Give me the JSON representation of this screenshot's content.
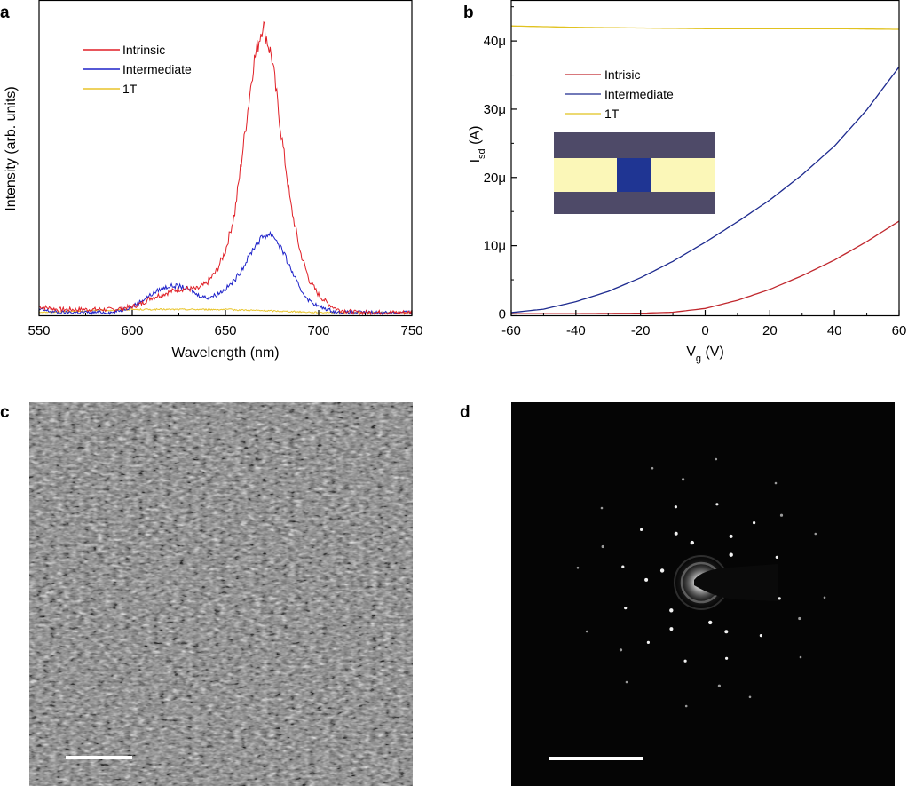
{
  "panels": {
    "a": "a",
    "b": "b",
    "c": "c",
    "d": "d"
  },
  "colors": {
    "red": "#e01f26",
    "blue": "#1e22c9",
    "yellow": "#e8c42a",
    "b_red": "#c0272d",
    "b_blue": "#1d2a8f",
    "b_yellow": "#e1c21f",
    "inset_dark": "#4e4a68",
    "inset_light": "#fbf7b8",
    "inset_channel": "#1f3593"
  },
  "chart_data": [
    {
      "id": "panel-a",
      "type": "line",
      "xlabel": "Wavelength (nm)",
      "ylabel": "Intensity (arb. units)",
      "xlim": [
        550,
        750
      ],
      "ylim": [
        0,
        1.08
      ],
      "xticks": [
        550,
        600,
        650,
        700,
        750
      ],
      "legend_position": "top-left",
      "series": [
        {
          "name": "Intrinsic",
          "color": "red",
          "x": [
            550,
            560,
            570,
            580,
            590,
            600,
            605,
            610,
            615,
            620,
            625,
            630,
            635,
            640,
            645,
            650,
            655,
            660,
            665,
            670,
            675,
            680,
            685,
            690,
            695,
            700,
            705,
            710,
            720,
            730,
            740,
            750
          ],
          "y": [
            0.03,
            0.02,
            0.02,
            0.02,
            0.02,
            0.03,
            0.04,
            0.06,
            0.07,
            0.08,
            0.09,
            0.09,
            0.09,
            0.11,
            0.15,
            0.22,
            0.35,
            0.6,
            0.86,
            1.0,
            0.88,
            0.62,
            0.38,
            0.22,
            0.12,
            0.07,
            0.04,
            0.02,
            0.01,
            0.01,
            0.01,
            0.01
          ]
        },
        {
          "name": "Intermediate",
          "color": "blue",
          "x": [
            550,
            560,
            570,
            580,
            590,
            600,
            605,
            610,
            615,
            620,
            625,
            630,
            635,
            640,
            645,
            650,
            655,
            660,
            665,
            670,
            675,
            680,
            685,
            690,
            695,
            700,
            705,
            710,
            720,
            730,
            740,
            750
          ],
          "y": [
            0.02,
            0.01,
            0.01,
            0.01,
            0.01,
            0.03,
            0.05,
            0.07,
            0.09,
            0.1,
            0.1,
            0.09,
            0.07,
            0.06,
            0.07,
            0.09,
            0.12,
            0.17,
            0.23,
            0.27,
            0.28,
            0.23,
            0.16,
            0.09,
            0.05,
            0.03,
            0.02,
            0.01,
            0.01,
            0.01,
            0.01,
            0.01
          ]
        },
        {
          "name": "1T",
          "color": "yellow",
          "x": [
            550,
            575,
            600,
            625,
            650,
            675,
            700,
            725,
            750
          ],
          "y": [
            0.01,
            0.015,
            0.02,
            0.02,
            0.02,
            0.015,
            0.01,
            0.01,
            0.01
          ]
        }
      ]
    },
    {
      "id": "panel-b",
      "type": "line",
      "xlabel": "V",
      "xlabel_sub": "g",
      "xlabel_unit": " (V)",
      "ylabel": "I",
      "ylabel_sub": "sd",
      "ylabel_unit": " (A)",
      "xlim": [
        -60,
        60
      ],
      "ylim": [
        -0.2,
        46
      ],
      "xticks": [
        -60,
        -40,
        -20,
        0,
        20,
        40,
        60
      ],
      "yticks": [
        0,
        10,
        20,
        30,
        40
      ],
      "ytick_labels": [
        "0",
        "10μ",
        "20μ",
        "30μ",
        "40μ"
      ],
      "y_unit": "μA",
      "legend_position": "top-left",
      "series": [
        {
          "name": "Intrisic",
          "color": "b_red",
          "x": [
            -60,
            -40,
            -20,
            -10,
            0,
            10,
            20,
            30,
            40,
            50,
            60
          ],
          "y": [
            0.05,
            0.05,
            0.1,
            0.25,
            0.8,
            2.0,
            3.6,
            5.6,
            7.9,
            10.6,
            13.6
          ]
        },
        {
          "name": "Intermediate",
          "color": "b_blue",
          "x": [
            -60,
            -50,
            -40,
            -30,
            -20,
            -10,
            0,
            10,
            20,
            30,
            40,
            50,
            60
          ],
          "y": [
            0.2,
            0.7,
            1.8,
            3.3,
            5.3,
            7.7,
            10.5,
            13.5,
            16.7,
            20.4,
            24.6,
            29.9,
            36.2
          ]
        },
        {
          "name": "1T",
          "color": "b_yellow",
          "x": [
            -60,
            -40,
            -20,
            0,
            20,
            40,
            60
          ],
          "y": [
            42.2,
            42.0,
            41.9,
            41.8,
            41.8,
            41.8,
            41.7
          ]
        }
      ],
      "inset": "optical micrograph of the device channel"
    }
  ],
  "images": {
    "c": "HRTEM lattice image with scale bar",
    "d": "SAED diffraction pattern with scale bar"
  }
}
